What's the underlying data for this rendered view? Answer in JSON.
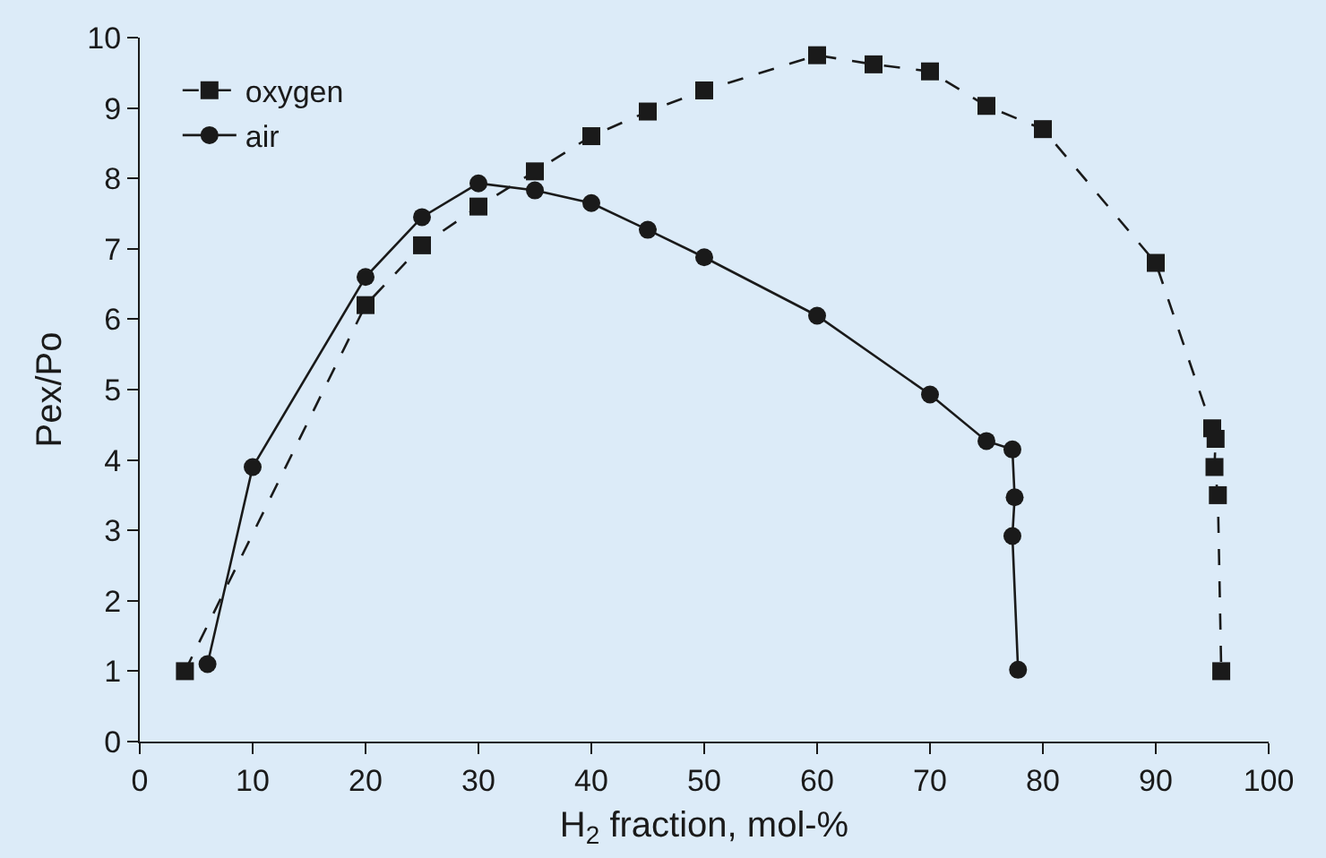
{
  "chart_data": {
    "type": "line",
    "xlabel": "H$_{2}$ fraction, mol-%",
    "ylabel": "Pex/Po",
    "xlim": [
      0,
      100
    ],
    "xticks": [
      0,
      10,
      20,
      30,
      40,
      50,
      60,
      70,
      80,
      90,
      100
    ],
    "ylim": [
      0,
      10
    ],
    "yticks": [
      0,
      1,
      2,
      3,
      4,
      5,
      6,
      7,
      8,
      9,
      10
    ],
    "grid": false,
    "legend": "top left",
    "series": [
      {
        "name": "oxygen",
        "color": "#1a1a1a",
        "marker": "square",
        "line_style": "dashed",
        "x": [
          4,
          20,
          25,
          30,
          35,
          40,
          45,
          50,
          60,
          65,
          70,
          75,
          80,
          90,
          95,
          95.3,
          95.2,
          95.5,
          95.8
        ],
        "values": [
          1.0,
          6.2,
          7.05,
          7.6,
          8.1,
          8.6,
          8.95,
          9.25,
          9.75,
          9.62,
          9.52,
          9.03,
          8.7,
          6.8,
          4.45,
          4.3,
          3.9,
          3.5,
          1.0
        ]
      },
      {
        "name": "air",
        "color": "#1a1a1a",
        "marker": "circle",
        "line_style": "solid",
        "x": [
          6,
          10,
          20,
          25,
          30,
          35,
          40,
          45,
          50,
          60,
          70,
          75,
          77.3,
          77.5,
          77.3,
          77.8
        ],
        "values": [
          1.1,
          3.9,
          6.6,
          7.45,
          7.93,
          7.83,
          7.65,
          7.27,
          6.88,
          6.05,
          4.93,
          4.27,
          4.15,
          3.47,
          2.92,
          1.02
        ]
      }
    ]
  }
}
